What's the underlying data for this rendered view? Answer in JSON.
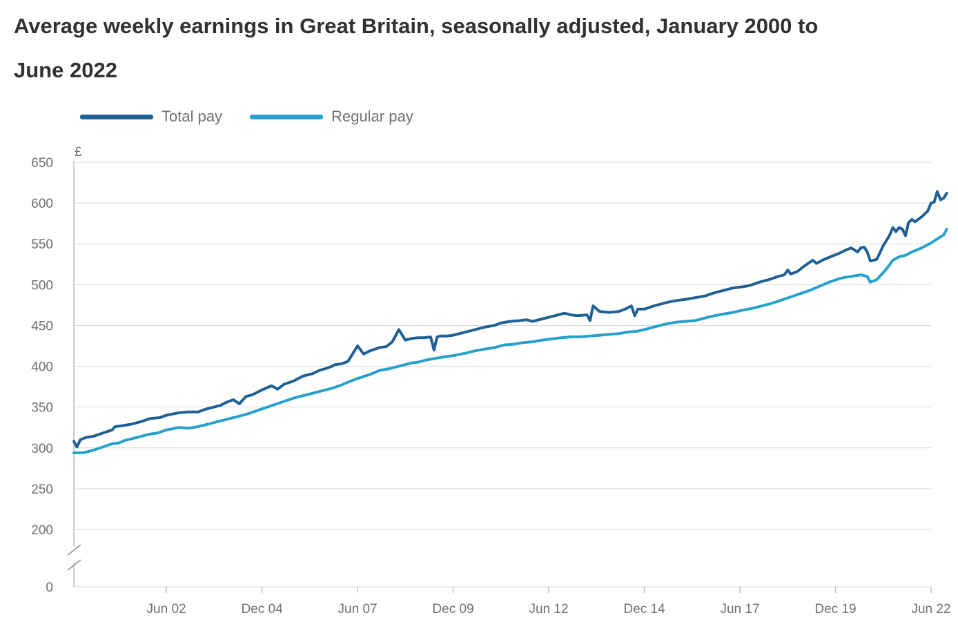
{
  "chart_data": {
    "type": "line",
    "title": "Average weekly earnings in Great Britain, seasonally adjusted, January 2000 to June 2022",
    "ylabel": "£",
    "xlabel": "",
    "ylim": [
      200,
      650
    ],
    "y_axis_break": true,
    "y_ticks": [
      650,
      600,
      550,
      500,
      450,
      400,
      350,
      300,
      250,
      200
    ],
    "y_zero_label": "0",
    "x_ticks": [
      {
        "label": "Jun 02",
        "t": 2002.42
      },
      {
        "label": "Dec 04",
        "t": 2004.92
      },
      {
        "label": "Jun 07",
        "t": 2007.42
      },
      {
        "label": "Dec 09",
        "t": 2009.92
      },
      {
        "label": "Jun 12",
        "t": 2012.42
      },
      {
        "label": "Dec 14",
        "t": 2014.92
      },
      {
        "label": "Jun 17",
        "t": 2017.42
      },
      {
        "label": "Dec 19",
        "t": 2019.92
      },
      {
        "label": "Jun 22",
        "t": 2022.42
      }
    ],
    "x_range": [
      2000.0,
      2022.42
    ],
    "legend_position": "top-left",
    "grid": true,
    "series": [
      {
        "name": "Total pay",
        "color": "#206095",
        "points": [
          [
            2000.0,
            308
          ],
          [
            2000.08,
            301
          ],
          [
            2000.17,
            310
          ],
          [
            2000.33,
            313
          ],
          [
            2000.5,
            314
          ],
          [
            2000.75,
            318
          ],
          [
            2001.0,
            322
          ],
          [
            2001.08,
            326
          ],
          [
            2001.25,
            327
          ],
          [
            2001.5,
            329
          ],
          [
            2001.75,
            332
          ],
          [
            2002.0,
            336
          ],
          [
            2002.25,
            337
          ],
          [
            2002.42,
            340
          ],
          [
            2002.75,
            343
          ],
          [
            2003.0,
            344
          ],
          [
            2003.25,
            344
          ],
          [
            2003.42,
            347
          ],
          [
            2003.58,
            349
          ],
          [
            2003.83,
            352
          ],
          [
            2004.0,
            356
          ],
          [
            2004.17,
            359
          ],
          [
            2004.33,
            354
          ],
          [
            2004.5,
            363
          ],
          [
            2004.67,
            365
          ],
          [
            2004.92,
            371
          ],
          [
            2005.17,
            376
          ],
          [
            2005.33,
            372
          ],
          [
            2005.5,
            378
          ],
          [
            2005.75,
            382
          ],
          [
            2006.0,
            388
          ],
          [
            2006.25,
            391
          ],
          [
            2006.42,
            395
          ],
          [
            2006.58,
            397
          ],
          [
            2006.75,
            400
          ],
          [
            2006.83,
            402
          ],
          [
            2007.0,
            403
          ],
          [
            2007.17,
            406
          ],
          [
            2007.42,
            425
          ],
          [
            2007.58,
            415
          ],
          [
            2007.75,
            419
          ],
          [
            2008.0,
            423
          ],
          [
            2008.17,
            424
          ],
          [
            2008.33,
            430
          ],
          [
            2008.5,
            445
          ],
          [
            2008.67,
            432
          ],
          [
            2008.83,
            434
          ],
          [
            2009.0,
            435
          ],
          [
            2009.17,
            435
          ],
          [
            2009.33,
            436
          ],
          [
            2009.42,
            420
          ],
          [
            2009.5,
            436
          ],
          [
            2009.58,
            437
          ],
          [
            2009.75,
            437
          ],
          [
            2009.92,
            438
          ],
          [
            2010.17,
            441
          ],
          [
            2010.42,
            444
          ],
          [
            2010.75,
            448
          ],
          [
            2011.0,
            450
          ],
          [
            2011.17,
            453
          ],
          [
            2011.42,
            455
          ],
          [
            2011.67,
            456
          ],
          [
            2011.83,
            457
          ],
          [
            2012.0,
            455
          ],
          [
            2012.25,
            458
          ],
          [
            2012.42,
            460
          ],
          [
            2012.67,
            463
          ],
          [
            2012.83,
            465
          ],
          [
            2013.0,
            463
          ],
          [
            2013.17,
            462
          ],
          [
            2013.42,
            463
          ],
          [
            2013.5,
            456
          ],
          [
            2013.58,
            474
          ],
          [
            2013.75,
            467
          ],
          [
            2014.0,
            466
          ],
          [
            2014.25,
            467
          ],
          [
            2014.42,
            470
          ],
          [
            2014.58,
            474
          ],
          [
            2014.67,
            462
          ],
          [
            2014.75,
            470
          ],
          [
            2014.92,
            470
          ],
          [
            2015.17,
            474
          ],
          [
            2015.42,
            477
          ],
          [
            2015.58,
            479
          ],
          [
            2015.83,
            481
          ],
          [
            2016.0,
            482
          ],
          [
            2016.25,
            484
          ],
          [
            2016.5,
            486
          ],
          [
            2016.75,
            490
          ],
          [
            2017.0,
            493
          ],
          [
            2017.25,
            496
          ],
          [
            2017.42,
            497
          ],
          [
            2017.58,
            498
          ],
          [
            2017.75,
            500
          ],
          [
            2017.92,
            503
          ],
          [
            2018.17,
            506
          ],
          [
            2018.42,
            510
          ],
          [
            2018.58,
            512
          ],
          [
            2018.67,
            518
          ],
          [
            2018.75,
            513
          ],
          [
            2018.92,
            516
          ],
          [
            2019.08,
            522
          ],
          [
            2019.33,
            530
          ],
          [
            2019.42,
            526
          ],
          [
            2019.58,
            530
          ],
          [
            2019.83,
            535
          ],
          [
            2020.0,
            538
          ],
          [
            2020.17,
            542
          ],
          [
            2020.33,
            545
          ],
          [
            2020.5,
            540
          ],
          [
            2020.58,
            545
          ],
          [
            2020.67,
            546
          ],
          [
            2020.75,
            540
          ],
          [
            2020.83,
            529
          ],
          [
            2020.92,
            530
          ],
          [
            2021.0,
            531
          ],
          [
            2021.17,
            548
          ],
          [
            2021.33,
            560
          ],
          [
            2021.42,
            570
          ],
          [
            2021.5,
            565
          ],
          [
            2021.58,
            570
          ],
          [
            2021.67,
            568
          ],
          [
            2021.75,
            560
          ],
          [
            2021.83,
            576
          ],
          [
            2021.92,
            580
          ],
          [
            2022.0,
            577
          ],
          [
            2022.17,
            583
          ],
          [
            2022.33,
            590
          ],
          [
            2022.42,
            600
          ],
          [
            2022.5,
            601
          ],
          [
            2022.58,
            614
          ],
          [
            2022.67,
            604
          ],
          [
            2022.75,
            606
          ],
          [
            2022.83,
            612
          ]
        ]
      },
      {
        "name": "Regular pay",
        "color": "#27a0cc",
        "points": [
          [
            2000.0,
            294
          ],
          [
            2000.25,
            294
          ],
          [
            2000.5,
            297
          ],
          [
            2000.75,
            301
          ],
          [
            2001.0,
            305
          ],
          [
            2001.17,
            306
          ],
          [
            2001.33,
            309
          ],
          [
            2001.5,
            311
          ],
          [
            2001.75,
            314
          ],
          [
            2002.0,
            317
          ],
          [
            2002.17,
            318
          ],
          [
            2002.42,
            322
          ],
          [
            2002.75,
            325
          ],
          [
            2003.0,
            324
          ],
          [
            2003.25,
            326
          ],
          [
            2003.42,
            328
          ],
          [
            2003.75,
            332
          ],
          [
            2004.0,
            335
          ],
          [
            2004.25,
            338
          ],
          [
            2004.5,
            341
          ],
          [
            2004.75,
            345
          ],
          [
            2005.0,
            349
          ],
          [
            2005.25,
            353
          ],
          [
            2005.5,
            357
          ],
          [
            2005.75,
            361
          ],
          [
            2006.0,
            364
          ],
          [
            2006.17,
            366
          ],
          [
            2006.42,
            369
          ],
          [
            2006.75,
            373
          ],
          [
            2007.0,
            377
          ],
          [
            2007.25,
            382
          ],
          [
            2007.42,
            385
          ],
          [
            2007.75,
            390
          ],
          [
            2008.0,
            395
          ],
          [
            2008.25,
            397
          ],
          [
            2008.5,
            400
          ],
          [
            2008.83,
            404
          ],
          [
            2009.0,
            405
          ],
          [
            2009.25,
            408
          ],
          [
            2009.5,
            410
          ],
          [
            2009.75,
            412
          ],
          [
            2009.92,
            413
          ],
          [
            2010.25,
            416
          ],
          [
            2010.5,
            419
          ],
          [
            2010.75,
            421
          ],
          [
            2011.0,
            423
          ],
          [
            2011.25,
            426
          ],
          [
            2011.5,
            427
          ],
          [
            2011.75,
            429
          ],
          [
            2012.0,
            430
          ],
          [
            2012.25,
            432
          ],
          [
            2012.42,
            433
          ],
          [
            2012.75,
            435
          ],
          [
            2013.0,
            436
          ],
          [
            2013.25,
            436
          ],
          [
            2013.5,
            437
          ],
          [
            2013.75,
            438
          ],
          [
            2014.0,
            439
          ],
          [
            2014.25,
            440
          ],
          [
            2014.5,
            442
          ],
          [
            2014.75,
            443
          ],
          [
            2014.92,
            445
          ],
          [
            2015.25,
            449
          ],
          [
            2015.5,
            452
          ],
          [
            2015.75,
            454
          ],
          [
            2016.0,
            455
          ],
          [
            2016.25,
            456
          ],
          [
            2016.5,
            459
          ],
          [
            2016.75,
            462
          ],
          [
            2017.0,
            464
          ],
          [
            2017.25,
            466
          ],
          [
            2017.42,
            468
          ],
          [
            2017.75,
            471
          ],
          [
            2018.0,
            474
          ],
          [
            2018.25,
            477
          ],
          [
            2018.5,
            481
          ],
          [
            2018.75,
            485
          ],
          [
            2019.0,
            489
          ],
          [
            2019.25,
            493
          ],
          [
            2019.5,
            498
          ],
          [
            2019.75,
            503
          ],
          [
            2020.0,
            507
          ],
          [
            2020.17,
            509
          ],
          [
            2020.33,
            510
          ],
          [
            2020.58,
            512
          ],
          [
            2020.75,
            510
          ],
          [
            2020.83,
            503
          ],
          [
            2021.0,
            506
          ],
          [
            2021.25,
            519
          ],
          [
            2021.42,
            530
          ],
          [
            2021.58,
            534
          ],
          [
            2021.75,
            536
          ],
          [
            2021.92,
            540
          ],
          [
            2022.17,
            545
          ],
          [
            2022.42,
            551
          ],
          [
            2022.58,
            556
          ],
          [
            2022.75,
            561
          ],
          [
            2022.83,
            568
          ]
        ]
      }
    ]
  }
}
